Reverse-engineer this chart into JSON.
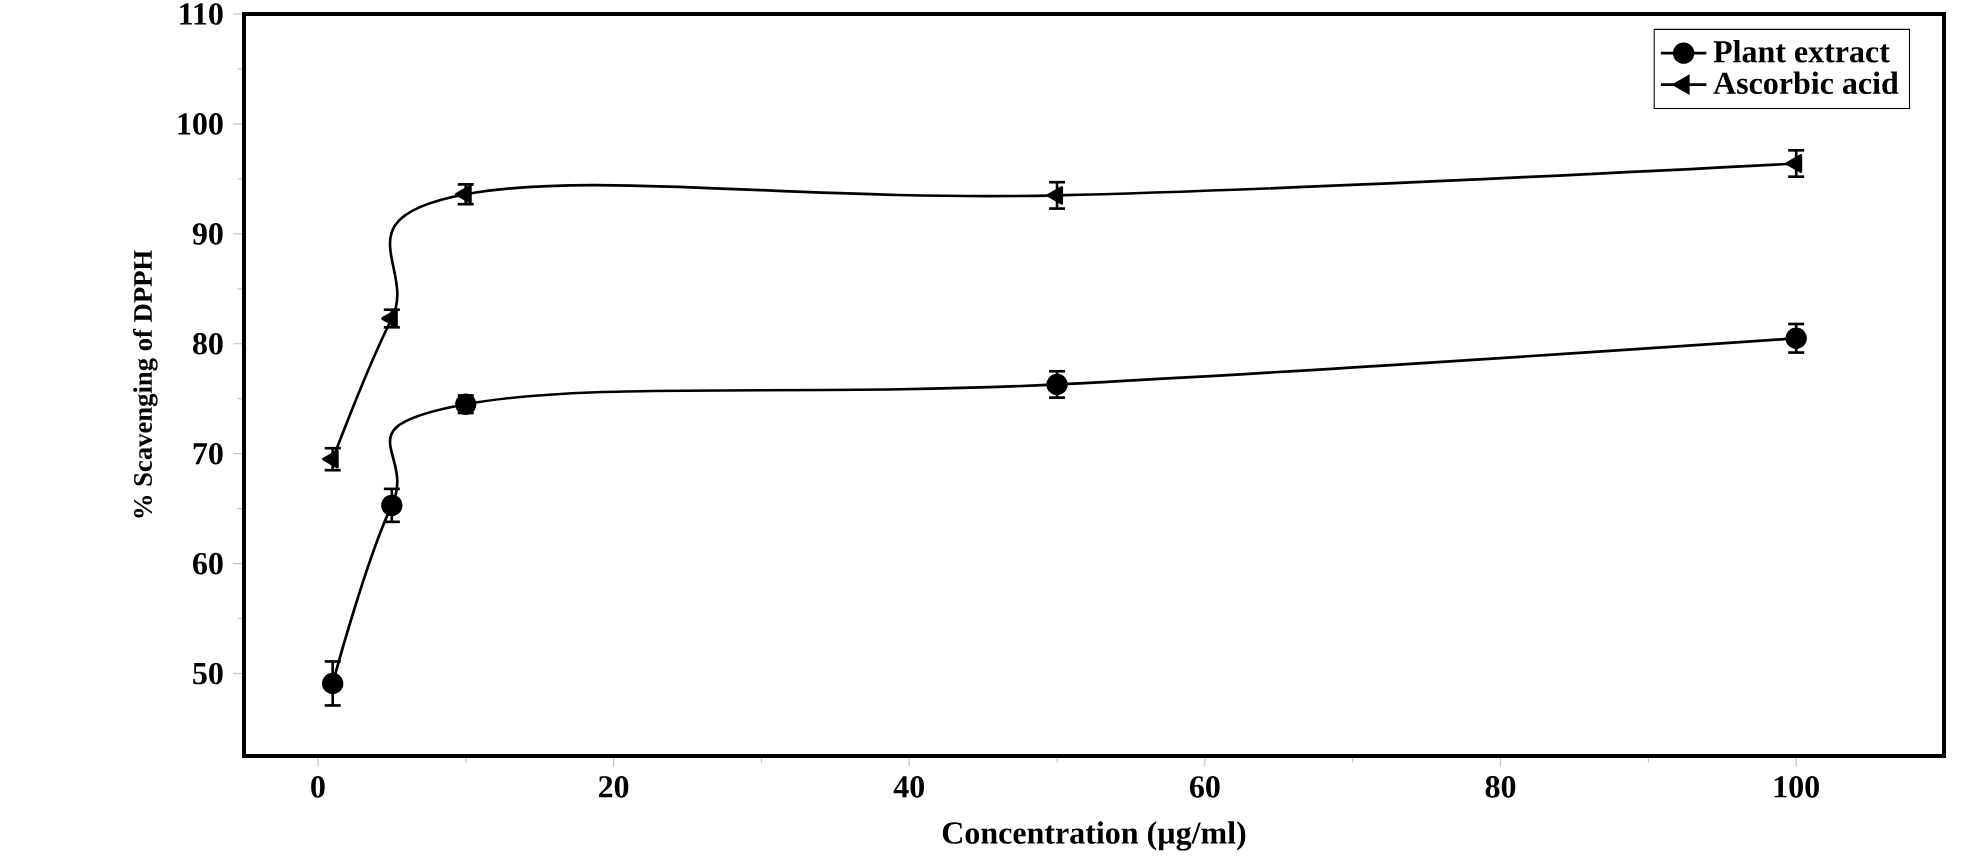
{
  "chart_data": {
    "type": "line",
    "xlabel": "Concentration (µg/ml)",
    "ylabel": "% Scavenging of DPPH",
    "x": [
      1,
      5,
      10,
      50,
      100
    ],
    "series": [
      {
        "name": "Plant extract",
        "color": "#000000",
        "marker": "circle",
        "values": [
          49.1,
          65.3,
          74.5,
          76.3,
          80.5
        ],
        "errors": [
          2,
          1.5,
          0.8,
          1.2,
          1.3
        ]
      },
      {
        "name": "Ascorbic acid",
        "color": "#000000",
        "marker": "triangle",
        "values": [
          69.5,
          82.3,
          93.6,
          93.5,
          96.4
        ],
        "errors": [
          1,
          0.8,
          0.9,
          1.2,
          1.2
        ]
      }
    ],
    "xlim": [
      -5,
      110
    ],
    "ylim": [
      42.5,
      110
    ],
    "xticks": [
      0,
      20,
      40,
      60,
      80,
      100
    ],
    "yticks": [
      50,
      60,
      70,
      80,
      90,
      100,
      110
    ],
    "grid": false,
    "legend": "top right",
    "line_style": "solid"
  }
}
